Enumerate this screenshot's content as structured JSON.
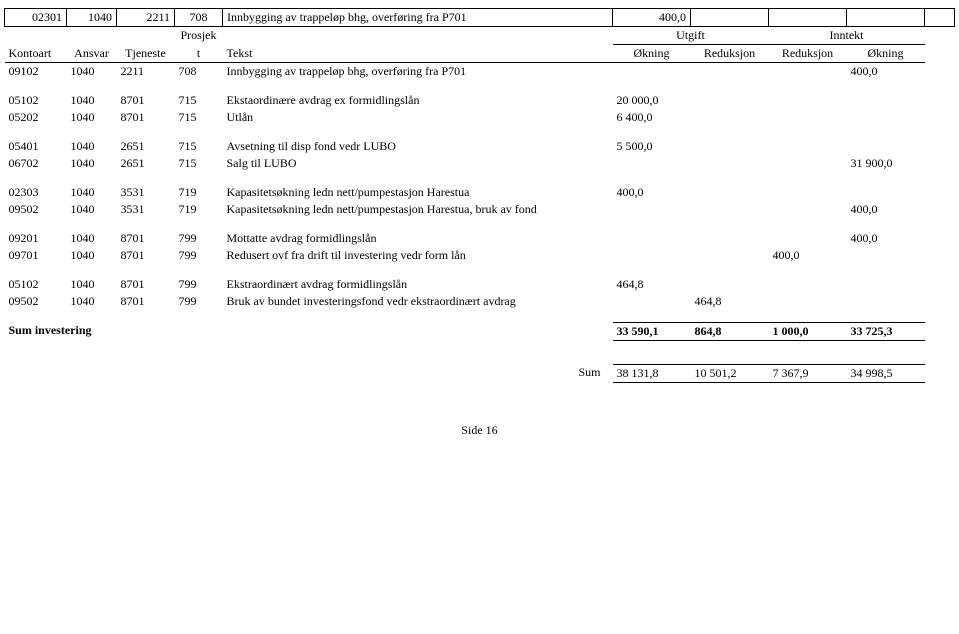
{
  "header": {
    "prosjekt": "Prosjek",
    "prosjekt_suffix": "t",
    "utgift": "Utgift",
    "inntekt": "Inntekt",
    "kontoart": "Kontoart",
    "ansvar": "Ansvar",
    "tjeneste": "Tjeneste",
    "tekst": "Tekst",
    "okning1": "Økning",
    "reduksjon1": "Reduksjon",
    "reduksjon2": "Reduksjon",
    "okning2": "Økning"
  },
  "rows": {
    "r0": {
      "c0": "02301",
      "c1": "1040",
      "c2": "2211",
      "c3": "708",
      "c4": "Innbygging av trappeløp bhg, overføring fra P701",
      "c5": "400,0"
    },
    "r1": {
      "c0": "09102",
      "c1": "1040",
      "c2": "2211",
      "c3": "708",
      "c4": "Innbygging av trappeløp bhg, overføring fra P701",
      "c8": "400,0"
    },
    "r2": {
      "c0": "05102",
      "c1": "1040",
      "c2": "8701",
      "c3": "715",
      "c4": "Ekstaordinære avdrag ex formidlingslån",
      "c5": "20 000,0"
    },
    "r3": {
      "c0": "05202",
      "c1": "1040",
      "c2": "8701",
      "c3": "715",
      "c4": "Utlån",
      "c5": "6 400,0"
    },
    "r4": {
      "c0": "05401",
      "c1": "1040",
      "c2": "2651",
      "c3": "715",
      "c4": "Avsetning til disp fond vedr LUBO",
      "c5": "5 500,0"
    },
    "r5": {
      "c0": "06702",
      "c1": "1040",
      "c2": "2651",
      "c3": "715",
      "c4": "Salg til LUBO",
      "c8": "31 900,0"
    },
    "r6": {
      "c0": "02303",
      "c1": "1040",
      "c2": "3531",
      "c3": "719",
      "c4": "Kapasitetsøkning ledn nett/pumpestasjon Harestua",
      "c5": "400,0"
    },
    "r7": {
      "c0": "09502",
      "c1": "1040",
      "c2": "3531",
      "c3": "719",
      "c4": "Kapasitetsøkning ledn nett/pumpestasjon Harestua, bruk av fond",
      "c8": "400,0"
    },
    "r8": {
      "c0": "09201",
      "c1": "1040",
      "c2": "8701",
      "c3": "799",
      "c4": "Mottatte avdrag formidlingslån",
      "c8": "400,0"
    },
    "r9": {
      "c0": "09701",
      "c1": "1040",
      "c2": "8701",
      "c3": "799",
      "c4": "Redusert ovf fra drift til investering vedr form lån",
      "c7": "400,0"
    },
    "r10": {
      "c0": "05102",
      "c1": "1040",
      "c2": "8701",
      "c3": "799",
      "c4": "Ekstraordinært avdrag formidlingslån",
      "c5": "464,8"
    },
    "r11": {
      "c0": "09502",
      "c1": "1040",
      "c2": "8701",
      "c3": "799",
      "c4": "Bruk av bundet investeringsfond vedr ekstraordinært avdrag",
      "c6": "464,8"
    }
  },
  "sum_inv": {
    "label": "Sum investering",
    "c5": "33 590,1",
    "c6": "864,8",
    "c7": "1 000,0",
    "c8": "33 725,3"
  },
  "sum_final": {
    "label": "Sum",
    "c5": "38 131,8",
    "c6": "10 501,2",
    "c7": "7 367,9",
    "c8": "34 998,5"
  },
  "page": {
    "side": "Side",
    "num": "16"
  }
}
